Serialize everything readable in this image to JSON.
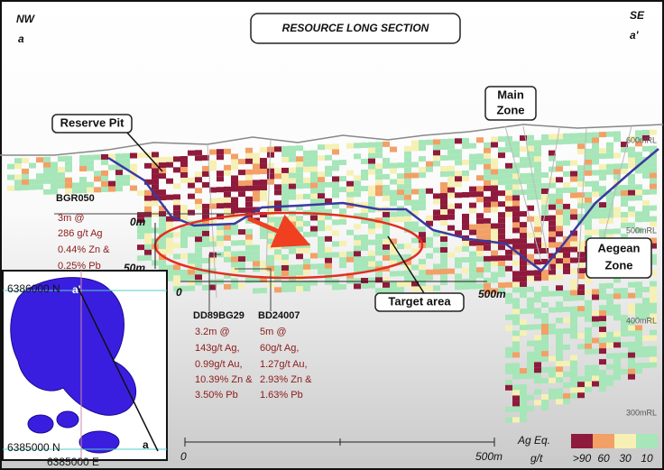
{
  "header": {
    "title": "RESOURCE LONG SECTION",
    "left_direction": "NW",
    "left_point": "a",
    "right_direction": "SE",
    "right_point": "a'"
  },
  "labels": {
    "main_zone": [
      "Main",
      "Zone"
    ],
    "reserve_pit": "Reserve Pit",
    "aegean_zone": [
      "Aegean",
      "Zone"
    ],
    "target_area": "Target area"
  },
  "elevations": [
    "600mRL",
    "500mRL",
    "400mRL",
    "300mRL"
  ],
  "depth_scale": {
    "top": "0m",
    "bottom": "50m"
  },
  "section_scale": {
    "start": "0",
    "end": "500m"
  },
  "drillholes": [
    {
      "name": "BGR050",
      "lines": [
        "3m @",
        "286 g/t Ag",
        "0.44% Zn &",
        "0.25% Pb"
      ]
    },
    {
      "name": "DD89BG29",
      "lines": [
        "3.2m @",
        "143g/t Ag,",
        "0.99g/t Au,",
        "10.39% Zn &",
        "3.50% Pb"
      ]
    },
    {
      "name": "BD24007",
      "lines": [
        "5m @",
        "60g/t Ag,",
        "1.27g/t Au,",
        "2.93% Zn &",
        "1.63% Pb"
      ]
    }
  ],
  "inset": {
    "north_top": "6386000 N",
    "north_bottom": "6385000 N",
    "east": "6385000 E",
    "point_a_prime": "a'",
    "point_a": "a"
  },
  "bottom_scale": {
    "start": "0",
    "end": "500m"
  },
  "legend": {
    "title": "Ag Eq.",
    "unit": "g/t",
    "items": [
      {
        "label": ">90",
        "color": "#8e1a3c"
      },
      {
        "label": "60",
        "color": "#f2a066"
      },
      {
        "label": "30",
        "color": "#f6f0b4"
      },
      {
        "label": "10",
        "color": "#a6e6b8"
      }
    ]
  }
}
